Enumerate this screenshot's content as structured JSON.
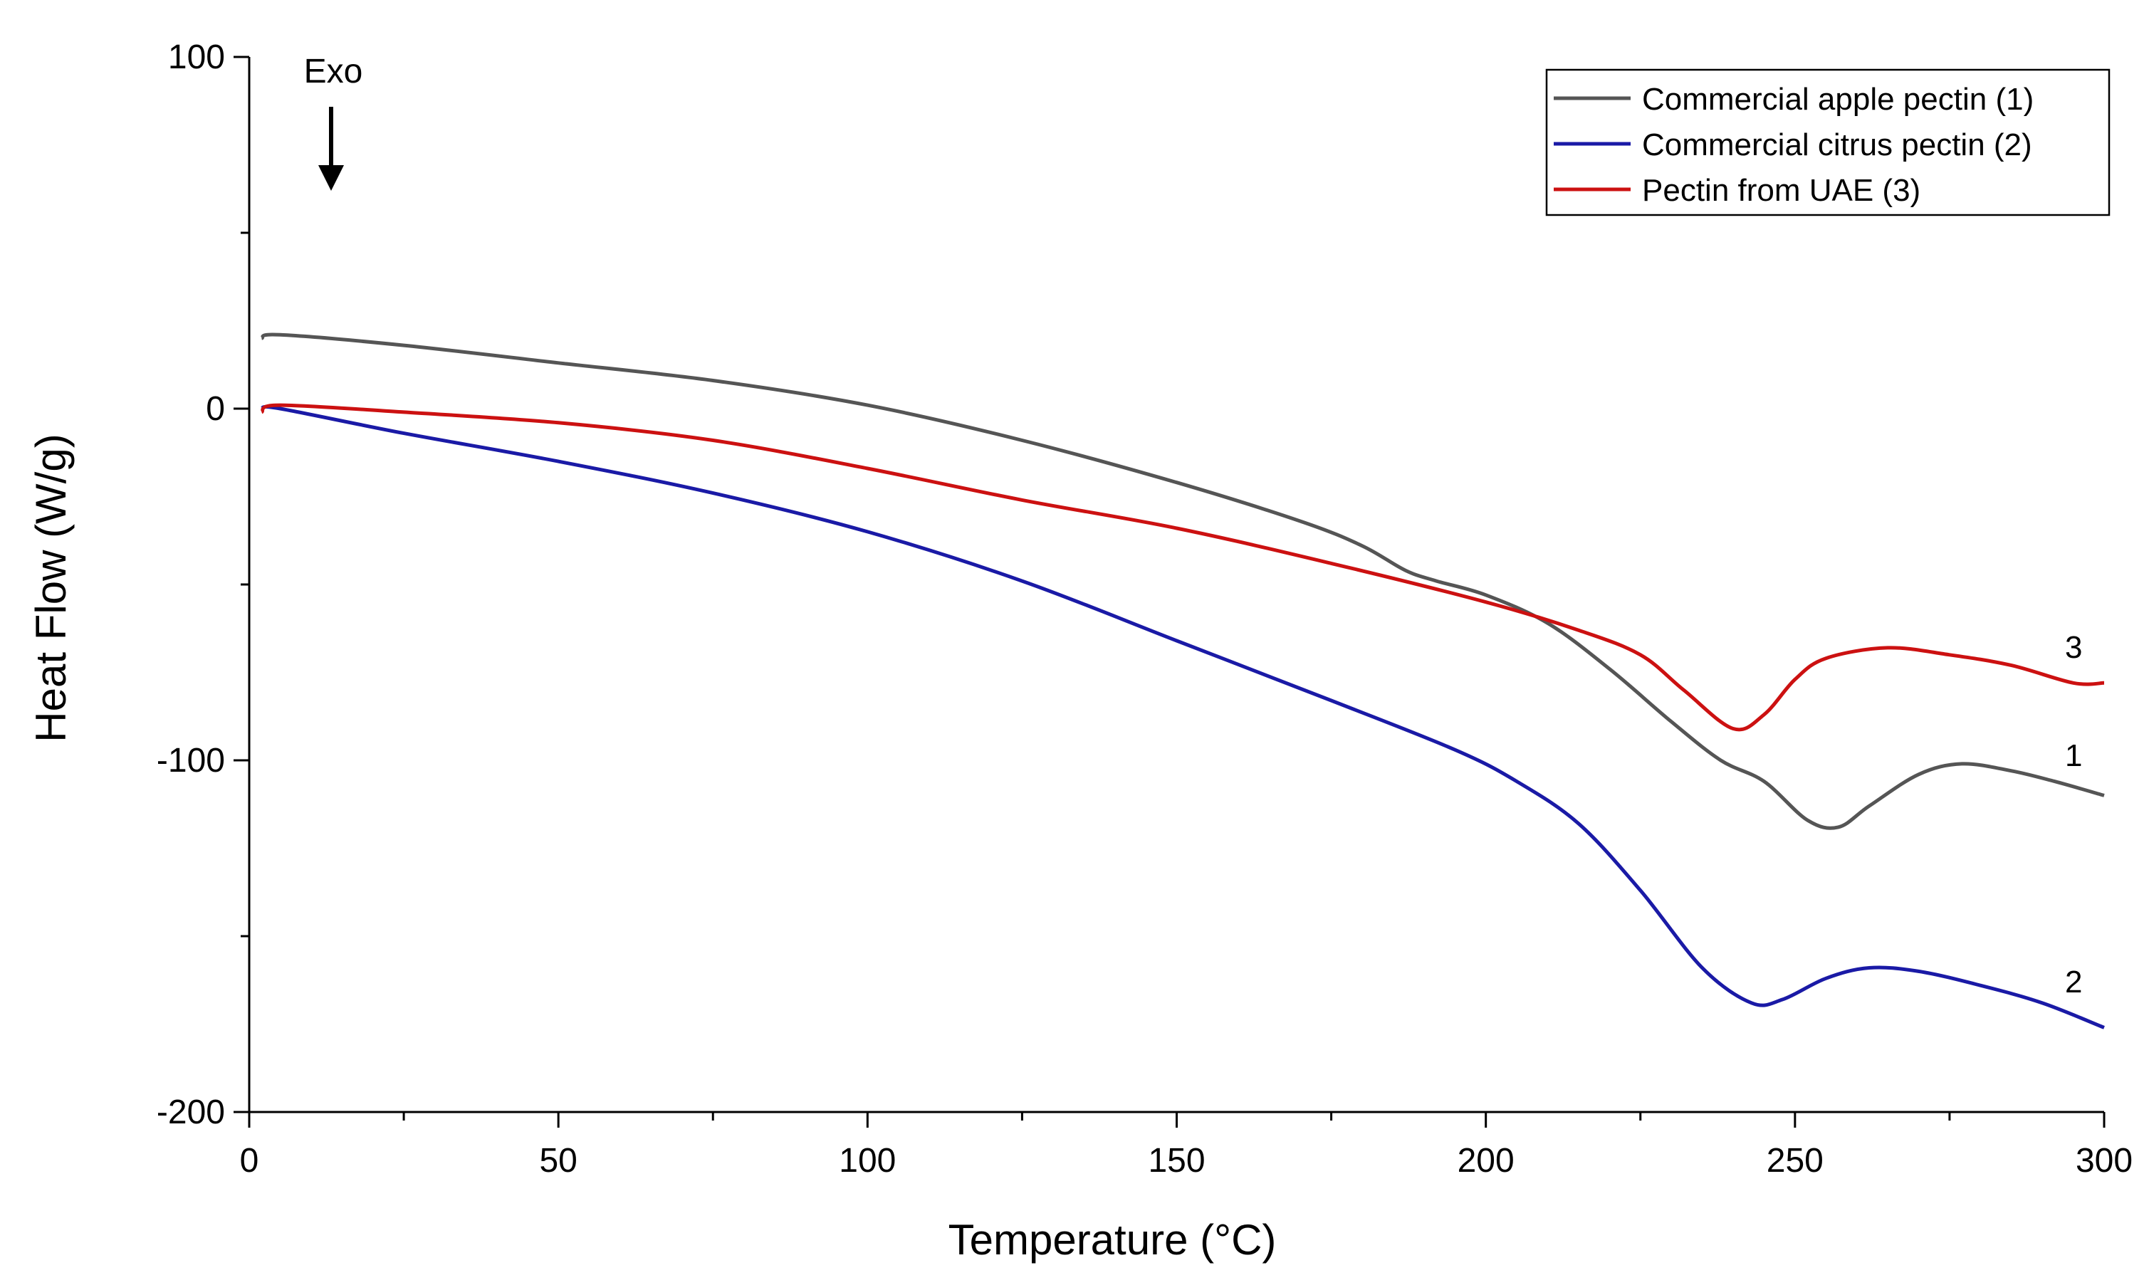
{
  "chart_data": {
    "type": "line",
    "title": "",
    "xlabel": "Temperature (°C)",
    "ylabel": "Heat Flow (W/g)",
    "xlim": [
      0,
      300
    ],
    "ylim": [
      -200,
      100
    ],
    "xticks": [
      0,
      50,
      100,
      150,
      200,
      250,
      300
    ],
    "yticks": [
      -200,
      -100,
      0,
      100
    ],
    "grid": false,
    "legend_position": "top-right",
    "annotation": {
      "text": "Exo",
      "x": 13,
      "direction": "down"
    },
    "series": [
      {
        "name": "Commercial apple pectin (1)",
        "label": "1",
        "color": "#555555",
        "points": [
          [
            2,
            20
          ],
          [
            5,
            21
          ],
          [
            25,
            18
          ],
          [
            50,
            13
          ],
          [
            75,
            8
          ],
          [
            100,
            1
          ],
          [
            125,
            -9
          ],
          [
            150,
            -21
          ],
          [
            170,
            -32
          ],
          [
            180,
            -39
          ],
          [
            187,
            -46
          ],
          [
            192,
            -49
          ],
          [
            200,
            -53
          ],
          [
            210,
            -61
          ],
          [
            220,
            -74
          ],
          [
            230,
            -89
          ],
          [
            238,
            -100
          ],
          [
            245,
            -106
          ],
          [
            252,
            -117
          ],
          [
            257,
            -119
          ],
          [
            262,
            -113
          ],
          [
            270,
            -104
          ],
          [
            277,
            -101
          ],
          [
            285,
            -103
          ],
          [
            292,
            -106
          ],
          [
            300,
            -110
          ]
        ]
      },
      {
        "name": "Commercial citrus pectin (2)",
        "label": "2",
        "color": "#1a1aa6",
        "points": [
          [
            2,
            0
          ],
          [
            5,
            0
          ],
          [
            25,
            -7
          ],
          [
            50,
            -15
          ],
          [
            75,
            -24
          ],
          [
            100,
            -35
          ],
          [
            125,
            -49
          ],
          [
            150,
            -66
          ],
          [
            175,
            -83
          ],
          [
            195,
            -97
          ],
          [
            205,
            -106
          ],
          [
            215,
            -118
          ],
          [
            225,
            -137
          ],
          [
            235,
            -159
          ],
          [
            243,
            -169
          ],
          [
            248,
            -168
          ],
          [
            255,
            -162
          ],
          [
            262,
            -159
          ],
          [
            270,
            -160
          ],
          [
            280,
            -164
          ],
          [
            290,
            -169
          ],
          [
            300,
            -176
          ]
        ]
      },
      {
        "name": "Pectin from UAE (3)",
        "label": "3",
        "color": "#cc1111",
        "points": [
          [
            2,
            -1
          ],
          [
            5,
            1
          ],
          [
            25,
            -1
          ],
          [
            50,
            -4
          ],
          [
            75,
            -9
          ],
          [
            100,
            -17
          ],
          [
            125,
            -26
          ],
          [
            150,
            -34
          ],
          [
            175,
            -44
          ],
          [
            200,
            -55
          ],
          [
            215,
            -63
          ],
          [
            225,
            -70
          ],
          [
            232,
            -80
          ],
          [
            240,
            -91
          ],
          [
            245,
            -87
          ],
          [
            250,
            -77
          ],
          [
            255,
            -71
          ],
          [
            265,
            -68
          ],
          [
            275,
            -70
          ],
          [
            285,
            -73
          ],
          [
            295,
            -78
          ],
          [
            300,
            -78
          ]
        ]
      }
    ]
  }
}
